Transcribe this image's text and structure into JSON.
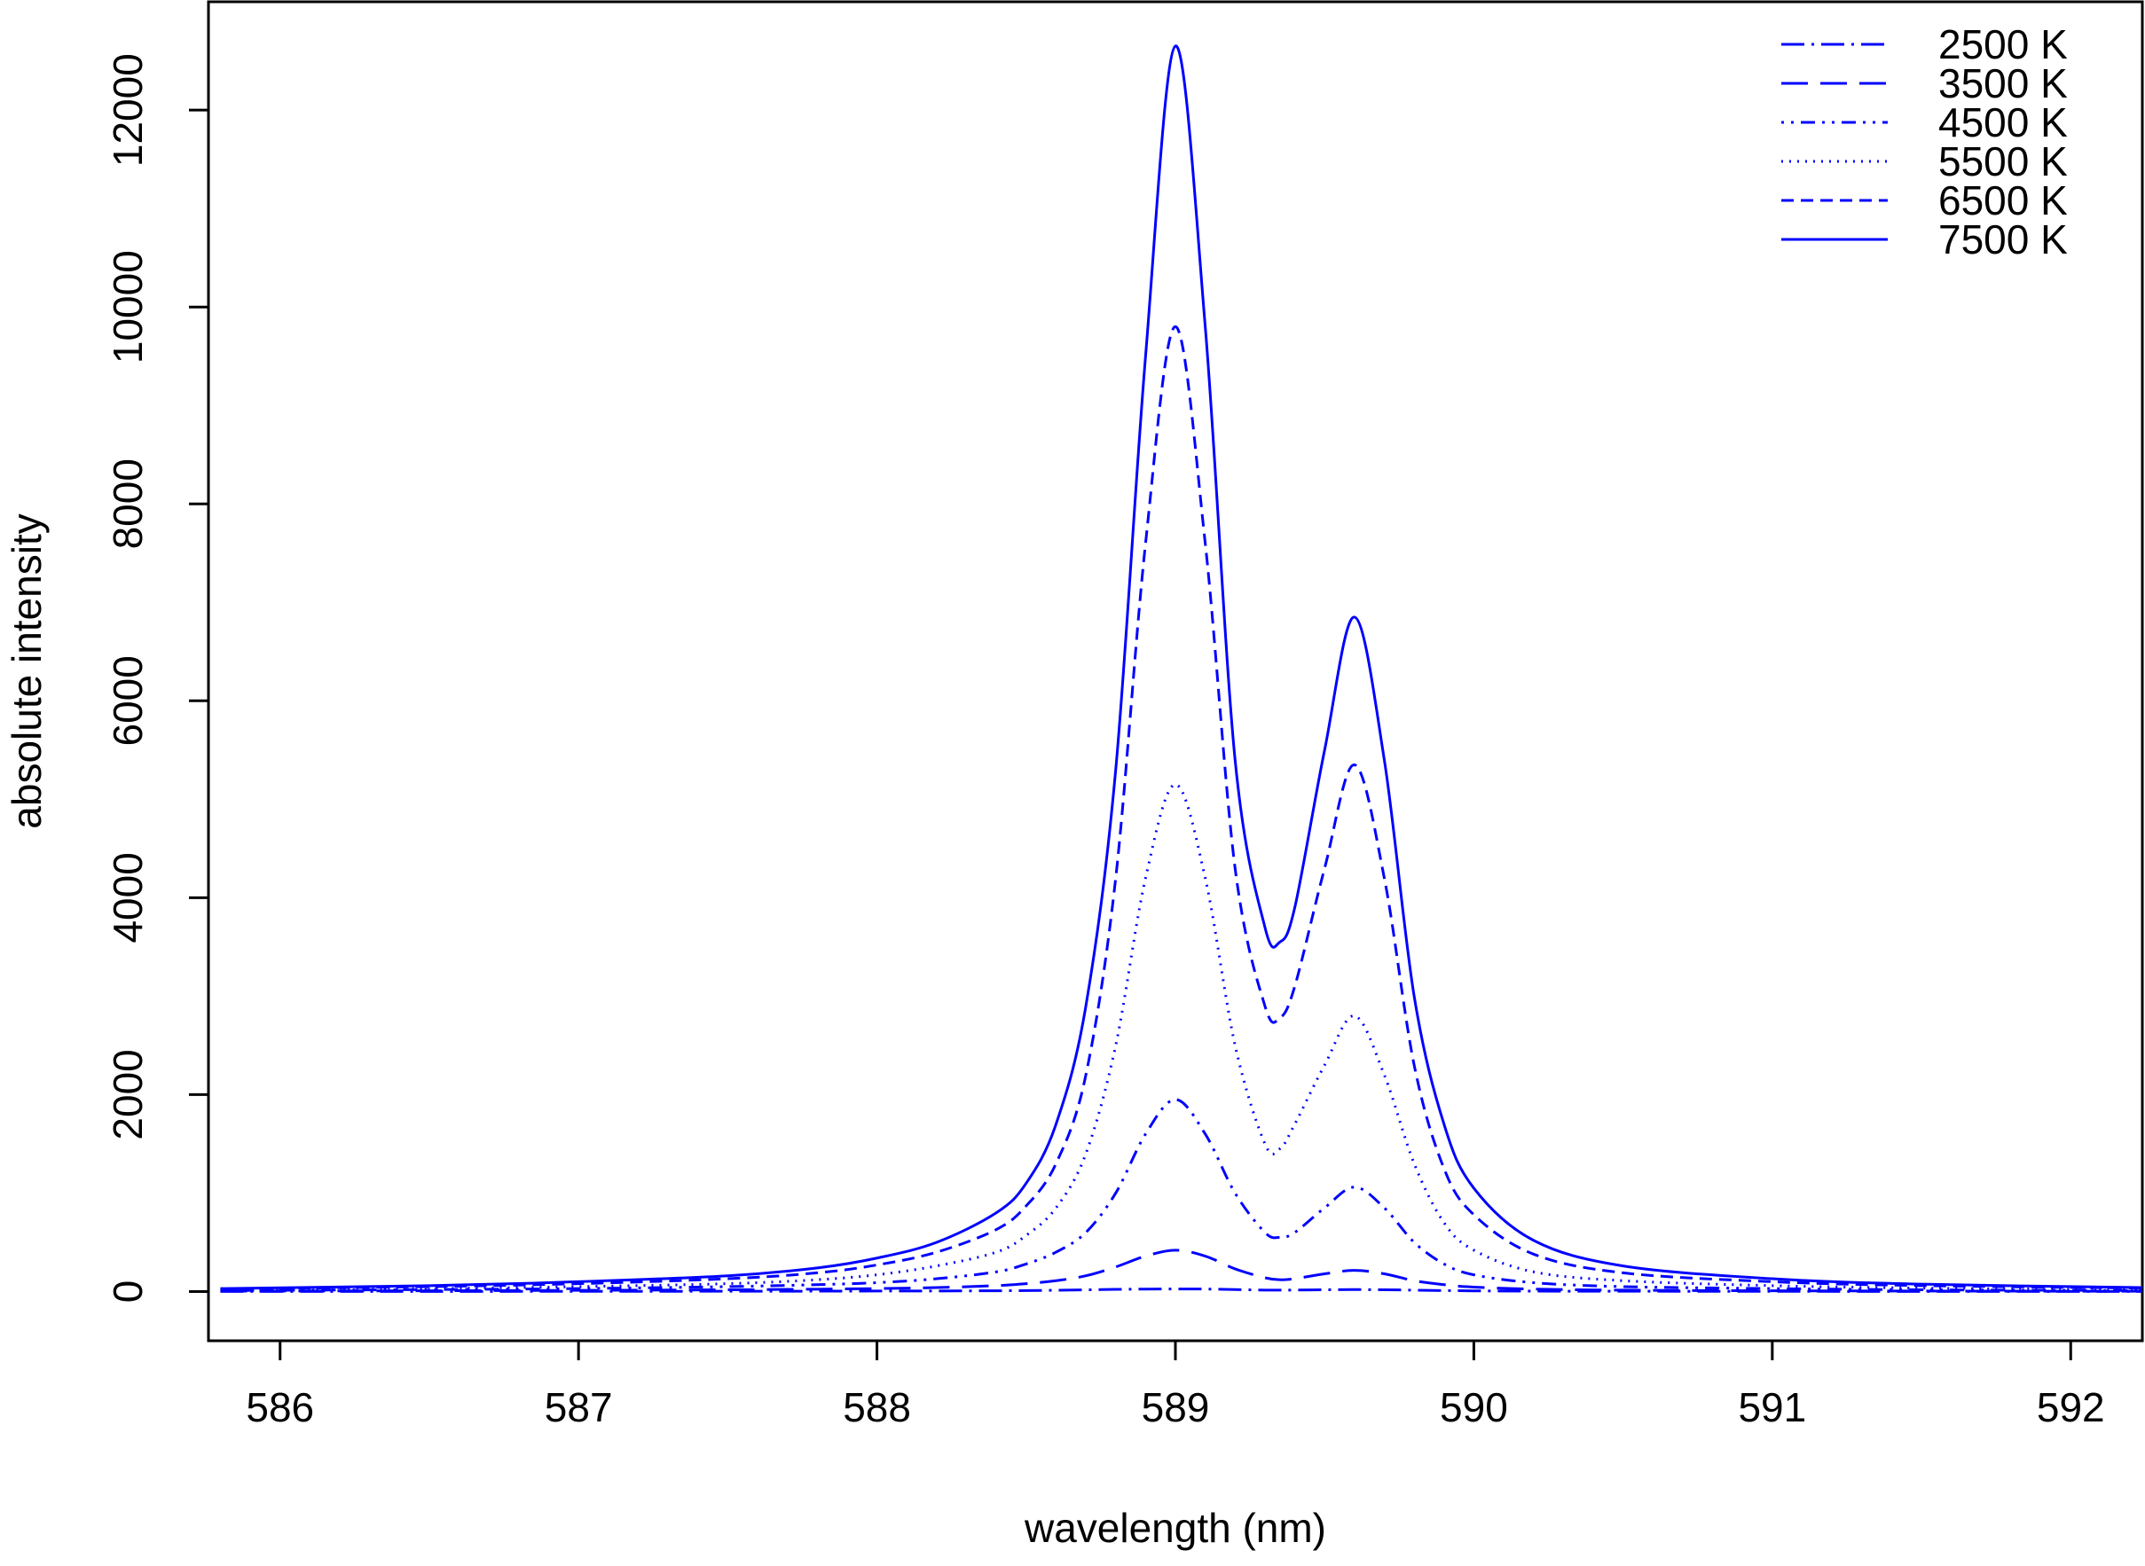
{
  "chart_data": {
    "type": "line",
    "title": "",
    "xlabel": "wavelength (nm)",
    "ylabel": "absolute intensity",
    "xlim": [
      585.76,
      592.24
    ],
    "ylim": [
      -500,
      13100
    ],
    "xticks": [
      586,
      587,
      588,
      589,
      590,
      591,
      592
    ],
    "yticks": [
      0,
      2000,
      4000,
      6000,
      8000,
      10000,
      12000
    ],
    "x_tick_labels": [
      "586",
      "587",
      "588",
      "589",
      "590",
      "591",
      "592"
    ],
    "y_tick_labels": [
      "0",
      "2000",
      "4000",
      "6000",
      "8000",
      "10000",
      "12000"
    ],
    "grid": false,
    "legend_position": "top-right",
    "color": "#0000ff",
    "x": [
      585.8,
      586.5,
      587.0,
      587.5,
      587.8,
      588.0,
      588.2,
      588.4,
      588.5,
      588.6,
      588.7,
      588.8,
      588.9,
      589.0,
      589.1,
      589.2,
      589.3,
      589.35,
      589.4,
      589.5,
      589.6,
      589.7,
      589.8,
      589.9,
      590.0,
      590.2,
      590.5,
      591.0,
      591.5,
      592.24
    ],
    "series": [
      {
        "name": "2500 K",
        "dash": "dashdot",
        "values": [
          1,
          1,
          2,
          3,
          4,
          5,
          6,
          8,
          10,
          13,
          17,
          22,
          25,
          26,
          25,
          20,
          15,
          14,
          15,
          18,
          20,
          18,
          14,
          10,
          7,
          4,
          3,
          2,
          1,
          1
        ]
      },
      {
        "name": "3500 K",
        "dash": "longdash",
        "values": [
          4,
          8,
          12,
          18,
          24,
          30,
          40,
          60,
          80,
          110,
          160,
          250,
          360,
          420,
          360,
          230,
          140,
          120,
          130,
          180,
          215,
          180,
          110,
          70,
          45,
          25,
          14,
          8,
          5,
          3
        ]
      },
      {
        "name": "4500 K",
        "dash": "dotdash",
        "values": [
          10,
          20,
          30,
          50,
          70,
          90,
          130,
          200,
          280,
          400,
          600,
          1000,
          1600,
          1950,
          1600,
          1000,
          600,
          550,
          600,
          850,
          1060,
          850,
          500,
          280,
          170,
          90,
          50,
          30,
          18,
          10
        ]
      },
      {
        "name": "5500 K",
        "dash": "dotted",
        "values": [
          15,
          30,
          50,
          80,
          120,
          170,
          260,
          400,
          570,
          850,
          1400,
          2500,
          4200,
          5150,
          4200,
          2500,
          1500,
          1450,
          1700,
          2300,
          2800,
          2200,
          1300,
          700,
          420,
          200,
          110,
          60,
          35,
          20
        ]
      },
      {
        "name": "6500 K",
        "dash": "dashed",
        "values": [
          25,
          50,
          80,
          130,
          190,
          270,
          400,
          630,
          870,
          1300,
          2200,
          4200,
          7600,
          9800,
          7600,
          4300,
          2900,
          2780,
          3100,
          4300,
          5350,
          4200,
          2300,
          1250,
          780,
          380,
          190,
          100,
          60,
          35
        ]
      },
      {
        "name": "7500 K",
        "dash": "solid",
        "values": [
          30,
          60,
          100,
          160,
          240,
          340,
          500,
          800,
          1100,
          1700,
          2900,
          5300,
          9500,
          12650,
          9800,
          5400,
          3700,
          3550,
          3900,
          5500,
          6850,
          5400,
          3000,
          1700,
          1050,
          520,
          260,
          130,
          75,
          40
        ]
      }
    ]
  }
}
